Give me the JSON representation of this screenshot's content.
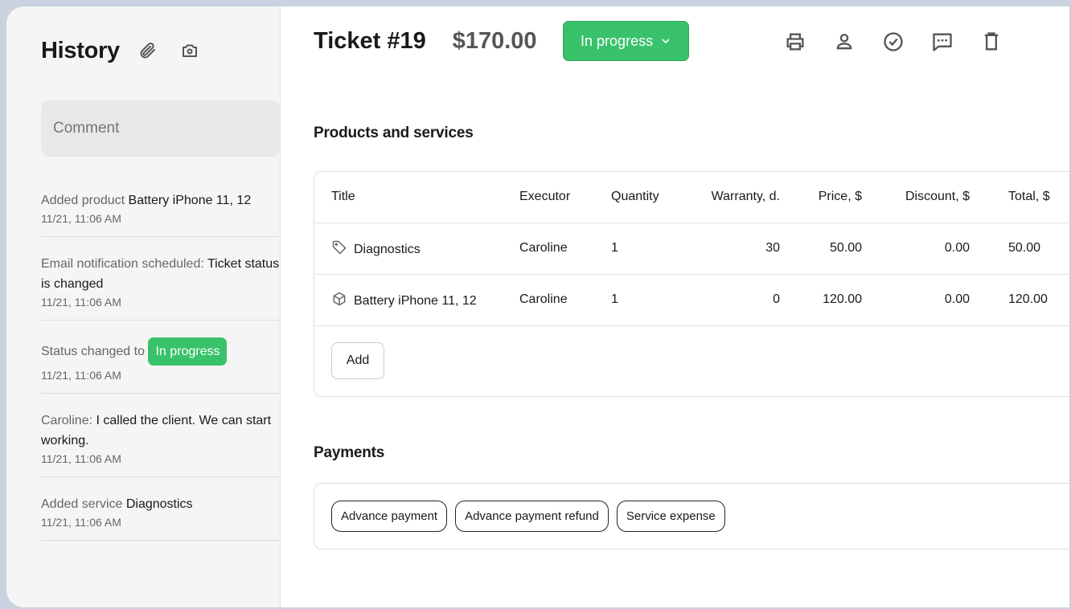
{
  "sidebar": {
    "title": "History",
    "comment_placeholder": "Comment",
    "items": [
      {
        "prefix": "Added product ",
        "value": "Battery iPhone 11, 12",
        "time": "11/21, 11:06 AM"
      },
      {
        "prefix": "Email notification scheduled: ",
        "value": "Ticket status is changed",
        "time": "11/21, 11:06 AM"
      },
      {
        "prefix": "Status changed to ",
        "badge": "In progress",
        "time": "11/21, 11:06 AM"
      },
      {
        "prefix": "Caroline: ",
        "value": "I called the client. We can start working.",
        "time": "11/21, 11:06 AM"
      },
      {
        "prefix": "Added service ",
        "value": "Diagnostics",
        "time": "11/21, 11:06 AM"
      }
    ]
  },
  "header": {
    "ticket": "Ticket #19",
    "price": "$170.00",
    "status": "In progress",
    "accent": "#39c26b",
    "actions": [
      "printer-icon",
      "user-icon",
      "check-circle-icon",
      "comment-icon",
      "trash-icon"
    ]
  },
  "products": {
    "title": "Products and services",
    "columns": [
      "Title",
      "Executor",
      "Quantity",
      "Warranty, d.",
      "Price, $",
      "Discount, $",
      "Total, $"
    ],
    "rows": [
      {
        "icon": "tag-icon",
        "title": "Diagnostics",
        "executor": "Caroline",
        "quantity": "1",
        "warranty": "30",
        "price": "50.00",
        "discount": "0.00",
        "total": "50.00"
      },
      {
        "icon": "box-icon",
        "title": "Battery iPhone 11, 12",
        "executor": "Caroline",
        "quantity": "1",
        "warranty": "0",
        "price": "120.00",
        "discount": "0.00",
        "total": "120.00"
      }
    ],
    "add_label": "Add"
  },
  "payments": {
    "title": "Payments",
    "buttons": [
      "Advance payment",
      "Advance payment refund",
      "Service expense"
    ]
  }
}
